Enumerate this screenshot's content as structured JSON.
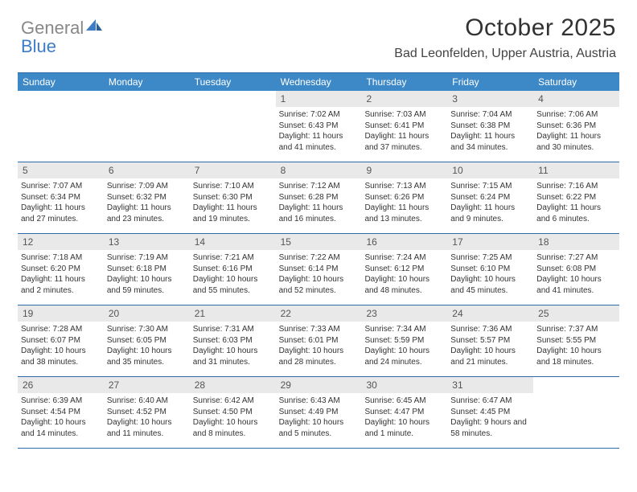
{
  "brand": {
    "name1": "General",
    "name2": "Blue"
  },
  "title": "October 2025",
  "location": "Bad Leonfelden, Upper Austria, Austria",
  "colors": {
    "header_bg": "#3d88c7",
    "border": "#2f6aa8",
    "daynum_bg": "#e9e9e9",
    "text": "#333333",
    "logo_gray": "#888888",
    "logo_blue": "#3d7cc9"
  },
  "dayNames": [
    "Sunday",
    "Monday",
    "Tuesday",
    "Wednesday",
    "Thursday",
    "Friday",
    "Saturday"
  ],
  "weeks": [
    [
      null,
      null,
      null,
      {
        "n": "1",
        "sr": "7:02 AM",
        "ss": "6:43 PM",
        "dl": "11 hours and 41 minutes."
      },
      {
        "n": "2",
        "sr": "7:03 AM",
        "ss": "6:41 PM",
        "dl": "11 hours and 37 minutes."
      },
      {
        "n": "3",
        "sr": "7:04 AM",
        "ss": "6:38 PM",
        "dl": "11 hours and 34 minutes."
      },
      {
        "n": "4",
        "sr": "7:06 AM",
        "ss": "6:36 PM",
        "dl": "11 hours and 30 minutes."
      }
    ],
    [
      {
        "n": "5",
        "sr": "7:07 AM",
        "ss": "6:34 PM",
        "dl": "11 hours and 27 minutes."
      },
      {
        "n": "6",
        "sr": "7:09 AM",
        "ss": "6:32 PM",
        "dl": "11 hours and 23 minutes."
      },
      {
        "n": "7",
        "sr": "7:10 AM",
        "ss": "6:30 PM",
        "dl": "11 hours and 19 minutes."
      },
      {
        "n": "8",
        "sr": "7:12 AM",
        "ss": "6:28 PM",
        "dl": "11 hours and 16 minutes."
      },
      {
        "n": "9",
        "sr": "7:13 AM",
        "ss": "6:26 PM",
        "dl": "11 hours and 13 minutes."
      },
      {
        "n": "10",
        "sr": "7:15 AM",
        "ss": "6:24 PM",
        "dl": "11 hours and 9 minutes."
      },
      {
        "n": "11",
        "sr": "7:16 AM",
        "ss": "6:22 PM",
        "dl": "11 hours and 6 minutes."
      }
    ],
    [
      {
        "n": "12",
        "sr": "7:18 AM",
        "ss": "6:20 PM",
        "dl": "11 hours and 2 minutes."
      },
      {
        "n": "13",
        "sr": "7:19 AM",
        "ss": "6:18 PM",
        "dl": "10 hours and 59 minutes."
      },
      {
        "n": "14",
        "sr": "7:21 AM",
        "ss": "6:16 PM",
        "dl": "10 hours and 55 minutes."
      },
      {
        "n": "15",
        "sr": "7:22 AM",
        "ss": "6:14 PM",
        "dl": "10 hours and 52 minutes."
      },
      {
        "n": "16",
        "sr": "7:24 AM",
        "ss": "6:12 PM",
        "dl": "10 hours and 48 minutes."
      },
      {
        "n": "17",
        "sr": "7:25 AM",
        "ss": "6:10 PM",
        "dl": "10 hours and 45 minutes."
      },
      {
        "n": "18",
        "sr": "7:27 AM",
        "ss": "6:08 PM",
        "dl": "10 hours and 41 minutes."
      }
    ],
    [
      {
        "n": "19",
        "sr": "7:28 AM",
        "ss": "6:07 PM",
        "dl": "10 hours and 38 minutes."
      },
      {
        "n": "20",
        "sr": "7:30 AM",
        "ss": "6:05 PM",
        "dl": "10 hours and 35 minutes."
      },
      {
        "n": "21",
        "sr": "7:31 AM",
        "ss": "6:03 PM",
        "dl": "10 hours and 31 minutes."
      },
      {
        "n": "22",
        "sr": "7:33 AM",
        "ss": "6:01 PM",
        "dl": "10 hours and 28 minutes."
      },
      {
        "n": "23",
        "sr": "7:34 AM",
        "ss": "5:59 PM",
        "dl": "10 hours and 24 minutes."
      },
      {
        "n": "24",
        "sr": "7:36 AM",
        "ss": "5:57 PM",
        "dl": "10 hours and 21 minutes."
      },
      {
        "n": "25",
        "sr": "7:37 AM",
        "ss": "5:55 PM",
        "dl": "10 hours and 18 minutes."
      }
    ],
    [
      {
        "n": "26",
        "sr": "6:39 AM",
        "ss": "4:54 PM",
        "dl": "10 hours and 14 minutes."
      },
      {
        "n": "27",
        "sr": "6:40 AM",
        "ss": "4:52 PM",
        "dl": "10 hours and 11 minutes."
      },
      {
        "n": "28",
        "sr": "6:42 AM",
        "ss": "4:50 PM",
        "dl": "10 hours and 8 minutes."
      },
      {
        "n": "29",
        "sr": "6:43 AM",
        "ss": "4:49 PM",
        "dl": "10 hours and 5 minutes."
      },
      {
        "n": "30",
        "sr": "6:45 AM",
        "ss": "4:47 PM",
        "dl": "10 hours and 1 minute."
      },
      {
        "n": "31",
        "sr": "6:47 AM",
        "ss": "4:45 PM",
        "dl": "9 hours and 58 minutes."
      },
      null
    ]
  ],
  "labels": {
    "sunrise": "Sunrise: ",
    "sunset": "Sunset: ",
    "daylight": "Daylight: "
  }
}
